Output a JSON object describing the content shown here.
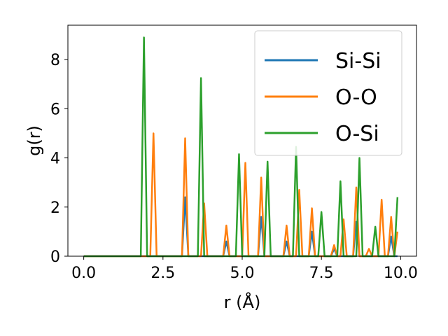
{
  "chart_data": {
    "type": "line",
    "title": "",
    "xlabel": "r (Å)",
    "ylabel": "g(r)",
    "xlim": [
      -0.5,
      10.5
    ],
    "ylim": [
      0,
      9.4
    ],
    "xticks": [
      0.0,
      2.5,
      5.0,
      7.5,
      10.0
    ],
    "xtick_labels": [
      "0.0",
      "2.5",
      "5.0",
      "7.5",
      "10.0"
    ],
    "yticks": [
      0,
      2,
      4,
      6,
      8
    ],
    "ytick_labels": [
      "0",
      "2",
      "4",
      "6",
      "8"
    ],
    "grid": false,
    "legend_position": "upper right",
    "x": [
      0.0,
      0.1,
      0.2,
      0.3,
      0.4,
      0.5,
      0.6,
      0.7,
      0.8,
      0.9,
      1.0,
      1.1,
      1.2,
      1.3,
      1.4,
      1.5,
      1.6,
      1.7,
      1.8,
      1.9,
      2.0,
      2.1,
      2.2,
      2.3,
      2.4,
      2.5,
      2.6,
      2.7,
      2.8,
      2.9,
      3.0,
      3.1,
      3.2,
      3.3,
      3.4,
      3.5,
      3.6,
      3.7,
      3.8,
      3.9,
      4.0,
      4.1,
      4.2,
      4.3,
      4.4,
      4.5,
      4.6,
      4.7,
      4.8,
      4.9,
      5.0,
      5.1,
      5.2,
      5.3,
      5.4,
      5.5,
      5.6,
      5.7,
      5.8,
      5.9,
      6.0,
      6.1,
      6.2,
      6.3,
      6.4,
      6.5,
      6.6,
      6.7,
      6.8,
      6.9,
      7.0,
      7.1,
      7.2,
      7.3,
      7.4,
      7.5,
      7.6,
      7.7,
      7.8,
      7.9,
      8.0,
      8.1,
      8.2,
      8.3,
      8.4,
      8.5,
      8.6,
      8.7,
      8.8,
      8.9,
      9.0,
      9.1,
      9.2,
      9.3,
      9.4,
      9.5,
      9.6,
      9.7,
      9.8,
      9.9
    ],
    "series": [
      {
        "name": "Si-Si",
        "color": "#1f77b4",
        "values": [
          0,
          0,
          0,
          0,
          0,
          0,
          0,
          0,
          0,
          0,
          0,
          0,
          0,
          0,
          0,
          0,
          0,
          0,
          0,
          0,
          0,
          0,
          0,
          0,
          0,
          0,
          0,
          0,
          0,
          0,
          0,
          0,
          2.4,
          0,
          0,
          0,
          0,
          0,
          0,
          0,
          0,
          0,
          0,
          0,
          0,
          0.6,
          0,
          0,
          0,
          0,
          0,
          0,
          0,
          0,
          0,
          0,
          1.6,
          0,
          0,
          0,
          0,
          0,
          0,
          0,
          0.6,
          0,
          0,
          0,
          0,
          0,
          0,
          0,
          1.0,
          0,
          0,
          0,
          0,
          0,
          0,
          0.3,
          0,
          0,
          0,
          0,
          0,
          0,
          1.4,
          0,
          0,
          0,
          0,
          0,
          0,
          0,
          0,
          0,
          0,
          0.8,
          0,
          0
        ]
      },
      {
        "name": "O-O",
        "color": "#ff7f0e",
        "values": [
          0,
          0,
          0,
          0,
          0,
          0,
          0,
          0,
          0,
          0,
          0,
          0,
          0,
          0,
          0,
          0,
          0,
          0,
          0,
          0,
          0,
          0,
          5.0,
          0,
          0,
          0,
          0,
          0,
          0,
          0,
          0,
          0,
          4.8,
          0,
          0,
          0,
          0,
          0,
          2.15,
          0,
          0,
          0,
          0,
          0,
          0,
          1.25,
          0,
          0,
          0,
          0,
          0,
          3.8,
          0,
          0,
          0,
          0,
          3.2,
          0,
          0,
          0,
          0,
          0,
          0,
          0,
          1.25,
          0,
          0,
          0,
          2.7,
          0,
          0,
          0,
          1.95,
          0,
          0,
          0,
          0,
          0,
          0,
          0.45,
          0,
          0,
          1.5,
          0,
          0,
          0,
          2.8,
          0,
          0,
          0,
          0.3,
          0,
          0,
          0,
          2.3,
          0,
          0,
          1.6,
          0,
          1.0
        ]
      },
      {
        "name": "O-Si",
        "color": "#2ca02c",
        "values": [
          0,
          0,
          0,
          0,
          0,
          0,
          0,
          0,
          0,
          0,
          0,
          0,
          0,
          0,
          0,
          0,
          0,
          0,
          0,
          8.9,
          0,
          0,
          0,
          0,
          0,
          0,
          0,
          0,
          0,
          0,
          0,
          0,
          0,
          0,
          0,
          0,
          0,
          7.25,
          0,
          0,
          0,
          0,
          0,
          0,
          0,
          0,
          0,
          0,
          0,
          4.15,
          0,
          0,
          0,
          0,
          0,
          0,
          0,
          0,
          3.85,
          0,
          0,
          0,
          0,
          0,
          0,
          0,
          0,
          4.45,
          0,
          0,
          0,
          0,
          0,
          0,
          0,
          1.8,
          0,
          0,
          0,
          0,
          0,
          3.05,
          0,
          0,
          0,
          0,
          0,
          4.0,
          0,
          0,
          0,
          0,
          1.2,
          0,
          0,
          0,
          0,
          0,
          0,
          2.4
        ]
      }
    ]
  }
}
